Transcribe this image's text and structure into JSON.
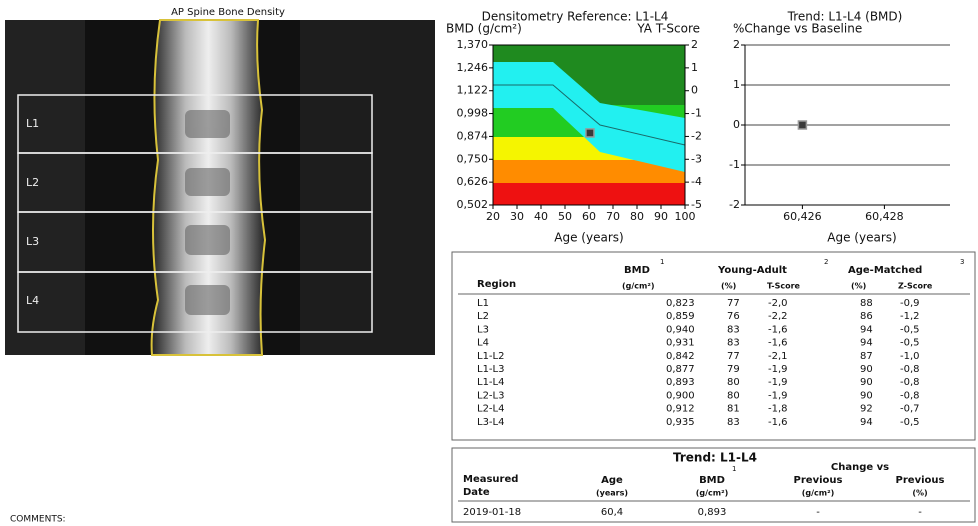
{
  "image": {
    "title": "AP Spine Bone Density",
    "regions": [
      "L1",
      "L2",
      "L3",
      "L4"
    ]
  },
  "chart_data": [
    {
      "type": "scatter",
      "title": "Densitometry Reference: L1-L4",
      "ylabel": "BMD (g/cm²)",
      "y2label": "YA T-Score",
      "xlabel": "Age (years)",
      "x": [
        60.4
      ],
      "values": [
        0.893
      ],
      "color": "#3a3a3a",
      "xlim": [
        20,
        100
      ],
      "xticks": [
        20,
        30,
        40,
        50,
        60,
        70,
        80,
        90,
        100
      ],
      "ylim": [
        0.502,
        1.37
      ],
      "yticks": [
        {
          "value": 0.502,
          "label": "0,502"
        },
        {
          "value": 0.626,
          "label": "0,626"
        },
        {
          "value": 0.75,
          "label": "0,750"
        },
        {
          "value": 0.874,
          "label": "0,874"
        },
        {
          "value": 0.998,
          "label": "0,998"
        },
        {
          "value": 1.122,
          "label": "1,122"
        },
        {
          "value": 1.246,
          "label": "1,246"
        },
        {
          "value": 1.37,
          "label": "1,370"
        }
      ],
      "y2lim": [
        -5,
        2
      ],
      "y2ticks": [
        -5,
        -4,
        -3,
        -2,
        -1,
        0,
        1,
        2
      ],
      "grid": false
    },
    {
      "type": "scatter",
      "title": "Trend: L1-L4 (BMD)",
      "ylabel": "%Change vs Baseline",
      "xlabel": "Age (years)",
      "x": [
        60426
      ],
      "values": [
        0
      ],
      "color": "#3a3a3a",
      "xlim": [
        60424.6,
        60429.6
      ],
      "xticks": [
        {
          "value": 60426,
          "label": "60,426"
        },
        {
          "value": 60428,
          "label": "60,428"
        }
      ],
      "ylim": [
        -2,
        2
      ],
      "yticks": [
        -2,
        -1,
        0,
        1,
        2
      ],
      "grid": true
    }
  ],
  "results_table": {
    "headers": {
      "region": "Region",
      "bmd": "BMD",
      "bmd_note": "1",
      "bmd_unit": "(g/cm²)",
      "young_adult": "Young-Adult",
      "young_adult_note": "2",
      "ya_pct": "(%)",
      "t_score": "T-Score",
      "age_matched": "Age-Matched",
      "age_matched_note": "3",
      "am_pct": "(%)",
      "z_score": "Z-Score"
    },
    "rows": [
      [
        "L1",
        "0,823",
        "77",
        "-2,0",
        "88",
        "-0,9"
      ],
      [
        "L2",
        "0,859",
        "76",
        "-2,2",
        "86",
        "-1,2"
      ],
      [
        "L3",
        "0,940",
        "83",
        "-1,6",
        "94",
        "-0,5"
      ],
      [
        "L4",
        "0,931",
        "83",
        "-1,6",
        "94",
        "-0,5"
      ],
      [
        "L1-L2",
        "0,842",
        "77",
        "-2,1",
        "87",
        "-1,0"
      ],
      [
        "L1-L3",
        "0,877",
        "79",
        "-1,9",
        "90",
        "-0,8"
      ],
      [
        "L1-L4",
        "0,893",
        "80",
        "-1,9",
        "90",
        "-0,8"
      ],
      [
        "L2-L3",
        "0,900",
        "80",
        "-1,9",
        "90",
        "-0,8"
      ],
      [
        "L2-L4",
        "0,912",
        "81",
        "-1,8",
        "92",
        "-0,7"
      ],
      [
        "L3-L4",
        "0,935",
        "83",
        "-1,6",
        "94",
        "-0,5"
      ]
    ]
  },
  "trend_table": {
    "title": "Trend: L1-L4",
    "headers": {
      "measured": "Measured",
      "date": "Date",
      "age": "Age",
      "age_unit": "(years)",
      "bmd": "BMD",
      "bmd_note": "1",
      "bmd_unit": "(g/cm²)",
      "change_vs": "Change vs",
      "previous_abs": "Previous",
      "previous_abs_unit": "(g/cm²)",
      "previous_pct": "Previous",
      "previous_pct_unit": "(%)"
    },
    "rows": [
      [
        "2019-01-18",
        "60,4",
        "0,893",
        "-",
        "-"
      ]
    ]
  },
  "comments": "COMMENTS:"
}
